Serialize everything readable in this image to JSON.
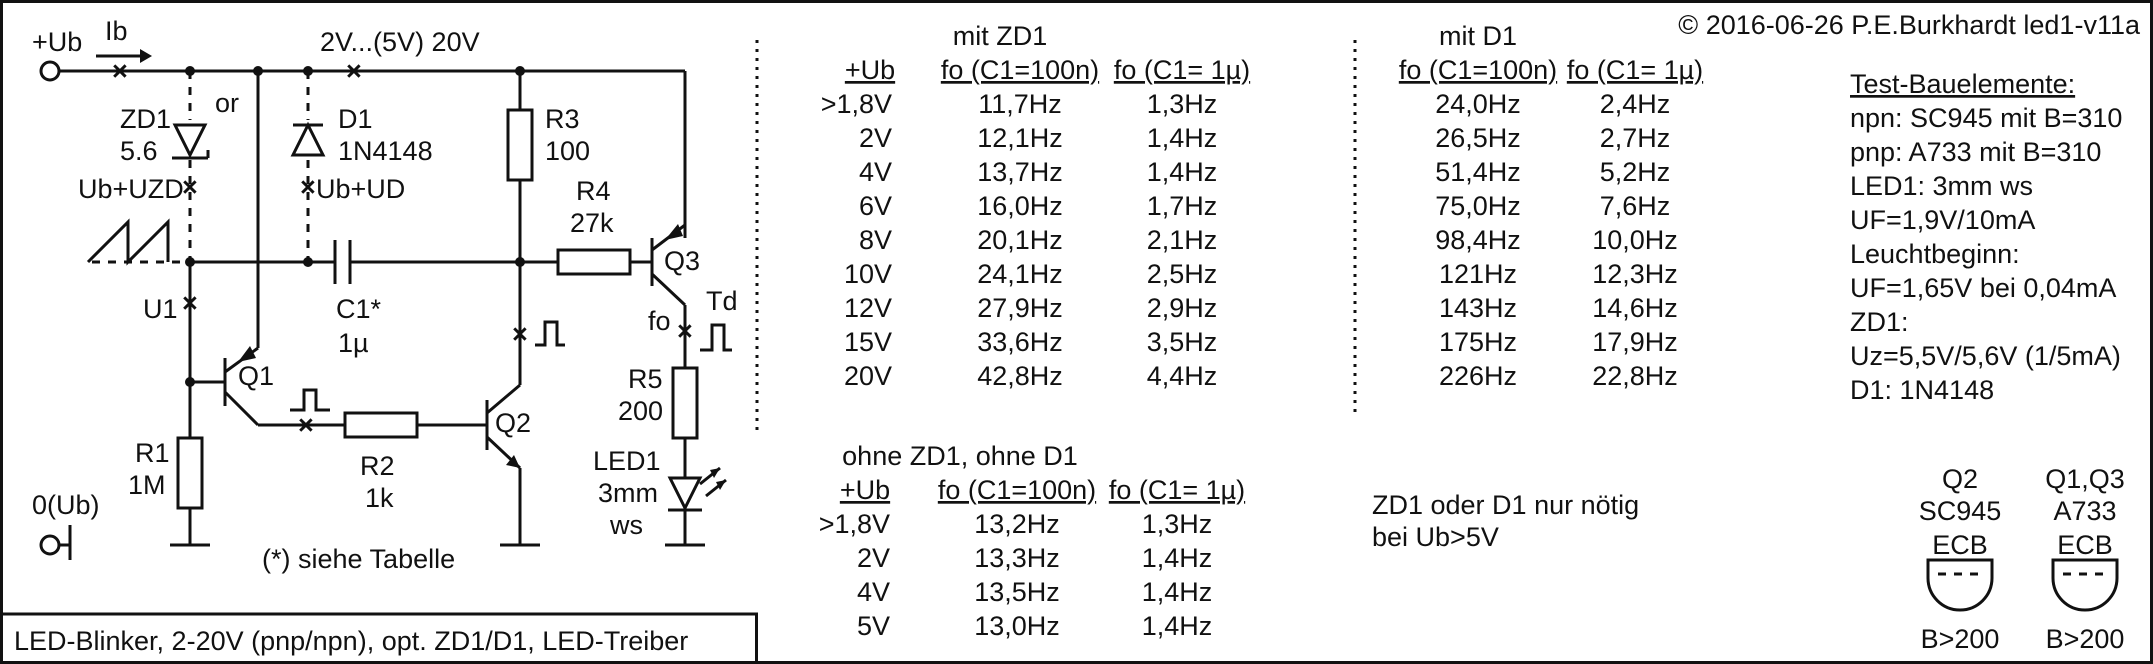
{
  "copyright": "© 2016-06-26 P.E.Burkhardt led1-v11a",
  "title_box": "LED-Blinker, 2-20V (pnp/npn), opt. ZD1/D1, LED-Treiber",
  "schematic": {
    "ub": "+Ub",
    "ib": "Ib",
    "voltage_range": "2V...(5V) 20V",
    "zd1": "ZD1",
    "zd1_value": "5.6",
    "or": "or",
    "d1": "D1",
    "d1_value": "1N4148",
    "ub_uzd": "Ub+UZD",
    "ub_ud": "Ub+UD",
    "r3": "R3",
    "r3_value": "100",
    "r4": "R4",
    "r4_value": "27k",
    "q3": "Q3",
    "td": "Td",
    "fo": "fo",
    "u1": "U1",
    "c1": "C1*",
    "c1_value": "1µ",
    "q1": "Q1",
    "q2": "Q2",
    "r1": "R1",
    "r1_value": "1M",
    "r2": "R2",
    "r2_value": "1k",
    "r5": "R5",
    "r5_value": "200",
    "led1": "LED1",
    "led1_size": "3mm",
    "led1_color": "ws",
    "ground": "0(Ub)",
    "footnote": "(*) siehe Tabelle"
  },
  "table_zd1": {
    "title": "mit ZD1",
    "headers": [
      "+Ub",
      "fo (C1=100n)",
      "fo (C1= 1µ)"
    ],
    "rows": [
      [
        ">1,8V",
        "11,7Hz",
        "1,3Hz"
      ],
      [
        "2V",
        "12,1Hz",
        "1,4Hz"
      ],
      [
        "4V",
        "13,7Hz",
        "1,4Hz"
      ],
      [
        "6V",
        "16,0Hz",
        "1,7Hz"
      ],
      [
        "8V",
        "20,1Hz",
        "2,1Hz"
      ],
      [
        "10V",
        "24,1Hz",
        "2,5Hz"
      ],
      [
        "12V",
        "27,9Hz",
        "2,9Hz"
      ],
      [
        "15V",
        "33,6Hz",
        "3,5Hz"
      ],
      [
        "20V",
        "42,8Hz",
        "4,4Hz"
      ]
    ]
  },
  "table_d1": {
    "title": "mit D1",
    "headers": [
      "fo (C1=100n)",
      "fo (C1= 1µ)"
    ],
    "rows": [
      [
        "24,0Hz",
        "2,4Hz"
      ],
      [
        "26,5Hz",
        "2,7Hz"
      ],
      [
        "51,4Hz",
        "5,2Hz"
      ],
      [
        "75,0Hz",
        "7,6Hz"
      ],
      [
        "98,4Hz",
        "10,0Hz"
      ],
      [
        "121Hz",
        "12,3Hz"
      ],
      [
        "143Hz",
        "14,6Hz"
      ],
      [
        "175Hz",
        "17,9Hz"
      ],
      [
        "226Hz",
        "22,8Hz"
      ]
    ]
  },
  "table_none": {
    "title": "ohne ZD1, ohne D1",
    "headers": [
      "+Ub",
      "fo (C1=100n)",
      "fo (C1= 1µ)"
    ],
    "rows": [
      [
        ">1,8V",
        "13,2Hz",
        "1,3Hz"
      ],
      [
        "2V",
        "13,3Hz",
        "1,4Hz"
      ],
      [
        "4V",
        "13,5Hz",
        "1,4Hz"
      ],
      [
        "5V",
        "13,0Hz",
        "1,4Hz"
      ]
    ]
  },
  "note": [
    "ZD1 oder D1 nur nötig",
    "bei Ub>5V"
  ],
  "test_components": {
    "title": "Test-Bauelemente:",
    "lines": [
      "npn: SC945 mit B=310",
      "pnp: A733 mit B=310",
      "LED1: 3mm ws",
      "UF=1,9V/10mA",
      "Leuchtbeginn:",
      "UF=1,65V bei 0,04mA",
      "ZD1:",
      "Uz=5,5V/5,6V (1/5mA)",
      "D1: 1N4148"
    ]
  },
  "packages": [
    {
      "name": "Q2",
      "part": "SC945",
      "pins": "ECB",
      "gain": "B>200"
    },
    {
      "name": "Q1,Q3",
      "part": "A733",
      "pins": "ECB",
      "gain": "B>200"
    }
  ]
}
